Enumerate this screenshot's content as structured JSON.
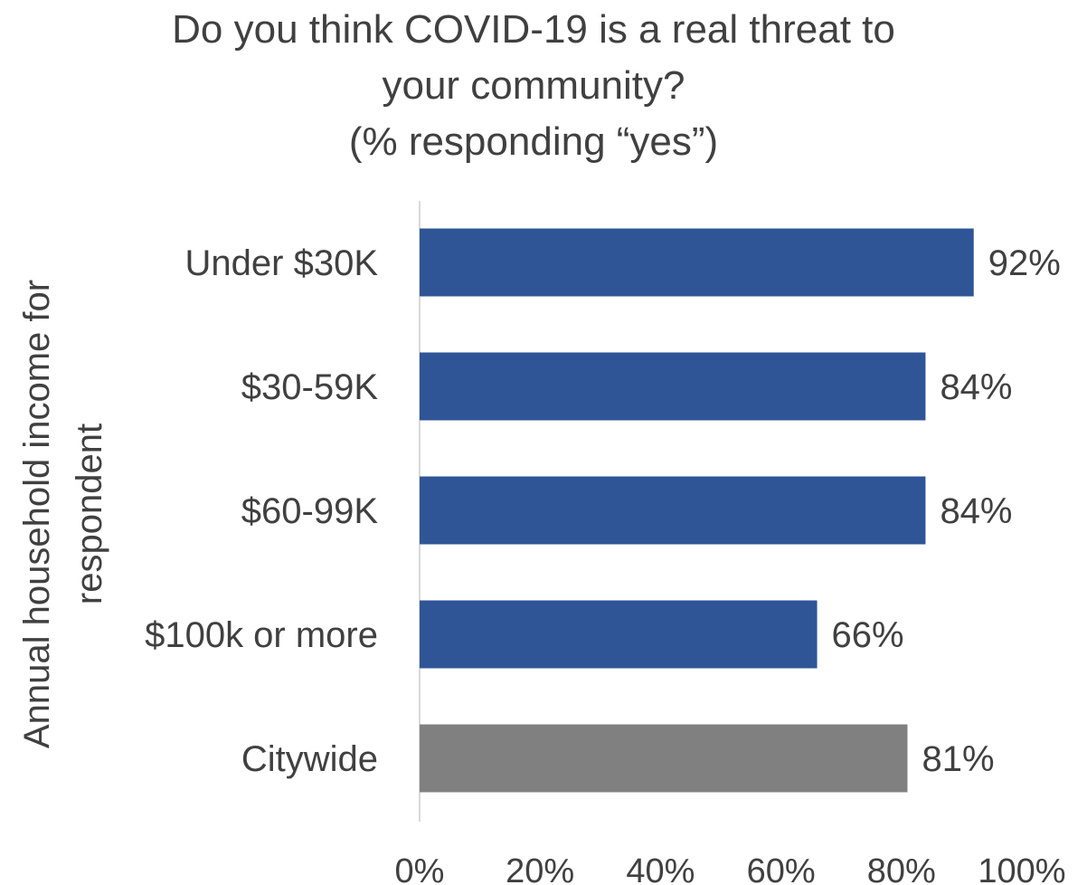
{
  "chart_data": {
    "type": "bar",
    "orientation": "horizontal",
    "title": [
      "Do you think COVID-19 is a real threat to",
      "your community?",
      "(% responding “yes”)"
    ],
    "ylabel": [
      "Annual household income for",
      "respondent"
    ],
    "xlabel": "",
    "categories": [
      "Under $30K",
      "$30-59K",
      "$60-99K",
      "$100k or more",
      "Citywide"
    ],
    "values": [
      92,
      84,
      84,
      66,
      81
    ],
    "value_labels": [
      "92%",
      "84%",
      "84%",
      "66%",
      "81%"
    ],
    "bar_colors": [
      "#2F5597",
      "#2F5597",
      "#2F5597",
      "#2F5597",
      "#808080"
    ],
    "xlim": [
      0,
      100
    ],
    "x_ticks": [
      0,
      20,
      40,
      60,
      80,
      100
    ],
    "x_tick_labels": [
      "0%",
      "20%",
      "40%",
      "60%",
      "80%",
      "100%"
    ],
    "grid": false,
    "legend": "none"
  }
}
